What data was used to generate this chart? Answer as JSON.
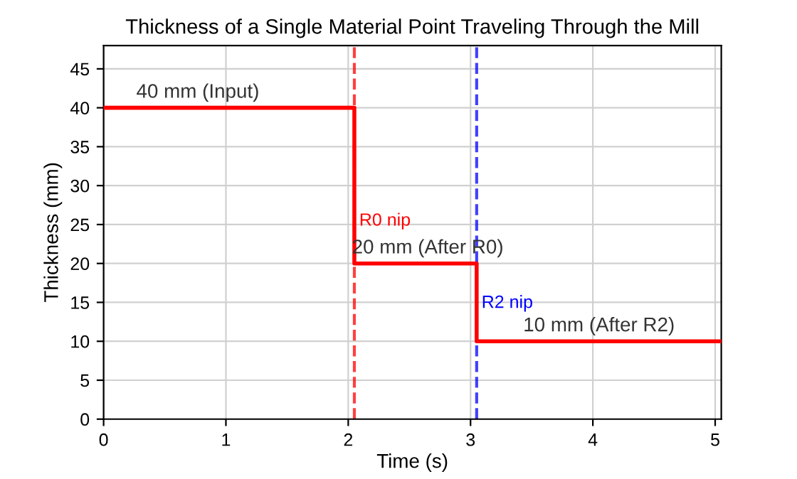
{
  "chart_data": {
    "type": "step",
    "title": "Thickness of a Single Material Point Traveling Through the Mill",
    "xlabel": "Time (s)",
    "ylabel": "Thickness (mm)",
    "series": [
      {
        "x": [
          0,
          2.05,
          3.05,
          5.05
        ],
        "values": [
          40,
          20,
          10,
          10
        ],
        "color": "#ff0000"
      }
    ],
    "xlim": [
      0,
      5.05
    ],
    "xticks": [
      0,
      1,
      2,
      3,
      4,
      5
    ],
    "ylim": [
      0,
      48
    ],
    "yticks": [
      0,
      5,
      10,
      15,
      20,
      25,
      30,
      35,
      40,
      45
    ],
    "grid": true,
    "ref_lines": [
      {
        "axis": "x",
        "value": 2.05,
        "label": "R0 nip",
        "color": "#ff0000",
        "line_style": "dashed"
      },
      {
        "axis": "x",
        "value": 3.05,
        "label": "R2 nip",
        "color": "#0000ff",
        "line_style": "dashed"
      }
    ],
    "annotations": [
      {
        "text": "40 mm (Input)",
        "x": 0.77,
        "y": 40
      },
      {
        "text": "20 mm (After R0)",
        "x": 2.65,
        "y": 20
      },
      {
        "text": "10 mm (After R2)",
        "x": 4.05,
        "y": 10
      }
    ]
  }
}
